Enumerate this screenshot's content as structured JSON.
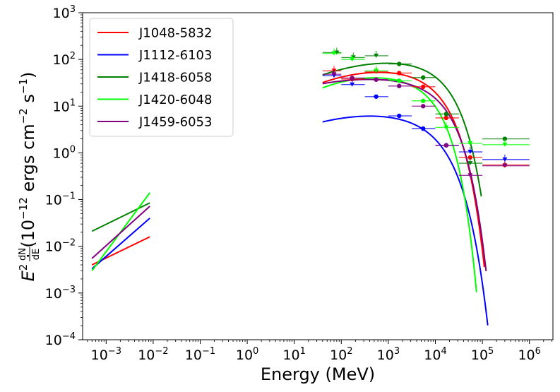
{
  "chart_data": {
    "type": "line",
    "xscale": "log",
    "yscale": "log",
    "xlim_log10": [
      -3.5,
      6.5
    ],
    "ylim_log10": [
      -4,
      3
    ],
    "xlabel": "Energy (MeV)",
    "ylabel": "E² · dN/dE (10⁻¹² ergs cm⁻² s⁻¹)",
    "ylabel_parts": {
      "e": "E",
      "sq": "2",
      "dot": " · ",
      "num": "dN",
      "den": "dE",
      "unit": " (10",
      "exp1": "−12",
      "unit2": " ergs cm",
      "exp2": "−2",
      "unit3": " s",
      "exp3": "−1",
      "close": ")"
    },
    "x_tick_labels": [
      {
        "base": "10",
        "exp": "−3"
      },
      {
        "base": "10",
        "exp": "−2"
      },
      {
        "base": "10",
        "exp": "−1"
      },
      {
        "base": "10",
        "exp": "0"
      },
      {
        "base": "10",
        "exp": "1"
      },
      {
        "base": "10",
        "exp": "2"
      },
      {
        "base": "10",
        "exp": "3"
      },
      {
        "base": "10",
        "exp": "4"
      },
      {
        "base": "10",
        "exp": "5"
      },
      {
        "base": "10",
        "exp": "6"
      }
    ],
    "x_tick_exps": [
      -3,
      -2,
      -1,
      0,
      1,
      2,
      3,
      4,
      5,
      6
    ],
    "y_tick_labels": [
      {
        "base": "10",
        "exp": "−4"
      },
      {
        "base": "10",
        "exp": "−3"
      },
      {
        "base": "10",
        "exp": "−2"
      },
      {
        "base": "10",
        "exp": "−1"
      },
      {
        "base": "10",
        "exp": "0"
      },
      {
        "base": "10",
        "exp": "1"
      },
      {
        "base": "10",
        "exp": "2"
      },
      {
        "base": "10",
        "exp": "3"
      }
    ],
    "y_tick_exps": [
      -4,
      -3,
      -2,
      -1,
      0,
      1,
      2,
      3
    ],
    "legend_position": "upper-left",
    "energy_bins_log10": [
      [
        1.602,
        2.0
      ],
      [
        2.0,
        2.5
      ],
      [
        2.5,
        3.0
      ],
      [
        3.0,
        3.5
      ],
      [
        3.5,
        4.0
      ],
      [
        4.0,
        4.5
      ],
      [
        4.5,
        5.0
      ],
      [
        5.0,
        6.0
      ]
    ],
    "series": [
      {
        "name": "J1048-5832",
        "color": "#ff0000",
        "low_energy_line": [
          [
            0.0005,
            0.004
          ],
          [
            0.0085,
            0.016
          ]
        ],
        "model": {
          "x_start": 40,
          "x_end": 110000,
          "peak_x": 1000,
          "peak_y": 52,
          "sigma_log": 1.32,
          "cutoff": 13000,
          "b": 1.0
        },
        "points": [
          {
            "x": 70,
            "y": 57,
            "ul": true
          },
          {
            "x": 170,
            "y": 38,
            "ul": false
          },
          {
            "x": 550,
            "y": 54,
            "ul": true
          },
          {
            "x": 1700,
            "y": 51,
            "ul": false
          },
          {
            "x": 5500,
            "y": 26,
            "ul": false
          },
          {
            "x": 17000,
            "y": 5.6,
            "ul": false
          },
          {
            "x": 55000,
            "y": 0.8,
            "ul": false
          },
          {
            "x": 300000,
            "y": 0.55,
            "ul": false
          }
        ]
      },
      {
        "name": "J1112-6103",
        "color": "#0000ff",
        "low_energy_line": [
          [
            0.0005,
            0.0033
          ],
          [
            0.0085,
            0.04
          ]
        ],
        "model": {
          "x_start": 40,
          "x_end": 130000,
          "peak_x": 700,
          "peak_y": 6.0,
          "sigma_log": 1.5,
          "cutoff": 11000,
          "b": 0.9
        },
        "points": [
          {
            "x": 70,
            "y": 45,
            "ul": true
          },
          {
            "x": 170,
            "y": 29,
            "ul": true
          },
          {
            "x": 550,
            "y": 16,
            "ul": false
          },
          {
            "x": 1700,
            "y": 6.2,
            "ul": false
          },
          {
            "x": 5500,
            "y": 3.3,
            "ul": false
          },
          {
            "x": 17000,
            "y": 1.45,
            "ul": false
          },
          {
            "x": 55000,
            "y": 1.05,
            "ul": true
          },
          {
            "x": 300000,
            "y": 0.72,
            "ul": true
          }
        ]
      },
      {
        "name": "J1418-6058",
        "color": "#008000",
        "low_energy_line": [
          [
            0.0005,
            0.021
          ],
          [
            0.0085,
            0.085
          ]
        ],
        "model": {
          "x_start": 40,
          "x_end": 95000,
          "peak_x": 1800,
          "peak_y": 80,
          "sigma_log": 1.45,
          "cutoff": 16000,
          "b": 1.0
        },
        "points": [
          {
            "x": 80,
            "y": 140,
            "ul": true
          },
          {
            "x": 180,
            "y": 110,
            "ul": true
          },
          {
            "x": 550,
            "y": 120,
            "ul": true
          },
          {
            "x": 1700,
            "y": 80,
            "ul": false
          },
          {
            "x": 5500,
            "y": 41,
            "ul": false
          },
          {
            "x": 17000,
            "y": 6.8,
            "ul": false
          },
          {
            "x": 55000,
            "y": 0.6,
            "ul": true
          },
          {
            "x": 300000,
            "y": 2.0,
            "ul": false
          }
        ]
      },
      {
        "name": "J1420-6048",
        "color": "#00ff00",
        "low_energy_line": [
          [
            0.0005,
            0.003
          ],
          [
            0.0085,
            0.14
          ]
        ],
        "model": {
          "x_start": 40,
          "x_end": 75000,
          "peak_x": 700,
          "peak_y": 40,
          "sigma_log": 1.2,
          "cutoff": 10000,
          "b": 1.1
        },
        "points": [
          {
            "x": 70,
            "y": 135,
            "ul": true
          },
          {
            "x": 170,
            "y": 100,
            "ul": true
          },
          {
            "x": 550,
            "y": 57,
            "ul": true
          },
          {
            "x": 1700,
            "y": 35,
            "ul": false
          },
          {
            "x": 5500,
            "y": 13,
            "ul": false
          },
          {
            "x": 17000,
            "y": 3.5,
            "ul": true
          },
          {
            "x": 55000,
            "y": 1.6,
            "ul": true
          },
          {
            "x": 300000,
            "y": 1.5,
            "ul": true
          }
        ]
      },
      {
        "name": "J1459-6053",
        "color": "#800080",
        "low_energy_line": [
          [
            0.0005,
            0.0055
          ],
          [
            0.0085,
            0.072
          ]
        ],
        "model": {
          "x_start": 40,
          "x_end": 120000,
          "peak_x": 600,
          "peak_y": 37,
          "sigma_log": 1.7,
          "cutoff": 14000,
          "b": 1.0
        },
        "points": [
          {
            "x": 70,
            "y": 48,
            "ul": true
          },
          {
            "x": 170,
            "y": 40,
            "ul": false
          },
          {
            "x": 550,
            "y": 37,
            "ul": false
          },
          {
            "x": 1700,
            "y": 27,
            "ul": false
          },
          {
            "x": 5500,
            "y": 10,
            "ul": false
          },
          {
            "x": 17000,
            "y": 1.45,
            "ul": false
          },
          {
            "x": 55000,
            "y": 0.33,
            "ul": true
          },
          {
            "x": 300000,
            "y": 0.53,
            "ul": true
          }
        ]
      }
    ]
  }
}
